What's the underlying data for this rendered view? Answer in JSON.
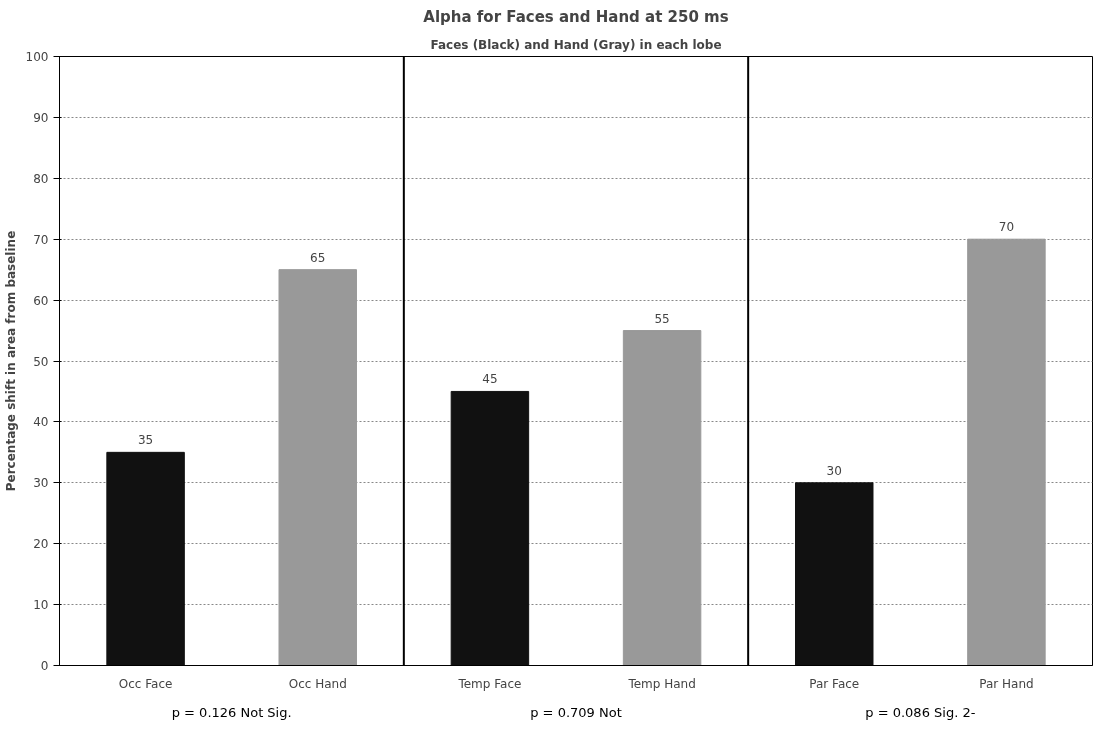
{
  "chart_data": {
    "type": "bar",
    "title": "Alpha for Faces and Hand at 250 ms",
    "subtitle": "Faces (Black) and Hand (Gray) in each lobe",
    "ylabel": "Percentage shift in area from baseline",
    "categories": [
      "Occ Face",
      "Occ Hand",
      "Temp Face",
      "Temp Hand",
      "Par Face",
      "Par Hand"
    ],
    "values": [
      35,
      65,
      45,
      55,
      30,
      70
    ],
    "colors": [
      "#111111",
      "#999999",
      "#111111",
      "#999999",
      "#111111",
      "#999999"
    ],
    "ylim": [
      0,
      100
    ],
    "yticks": [
      0,
      10,
      20,
      30,
      40,
      50,
      60,
      70,
      80,
      90,
      100
    ],
    "grid": "y",
    "data_labels": true,
    "annotations": [
      "p = 0.126 Not Sig.",
      "p = 0.709 Not",
      "p = 0.086 Sig. 2-"
    ]
  }
}
